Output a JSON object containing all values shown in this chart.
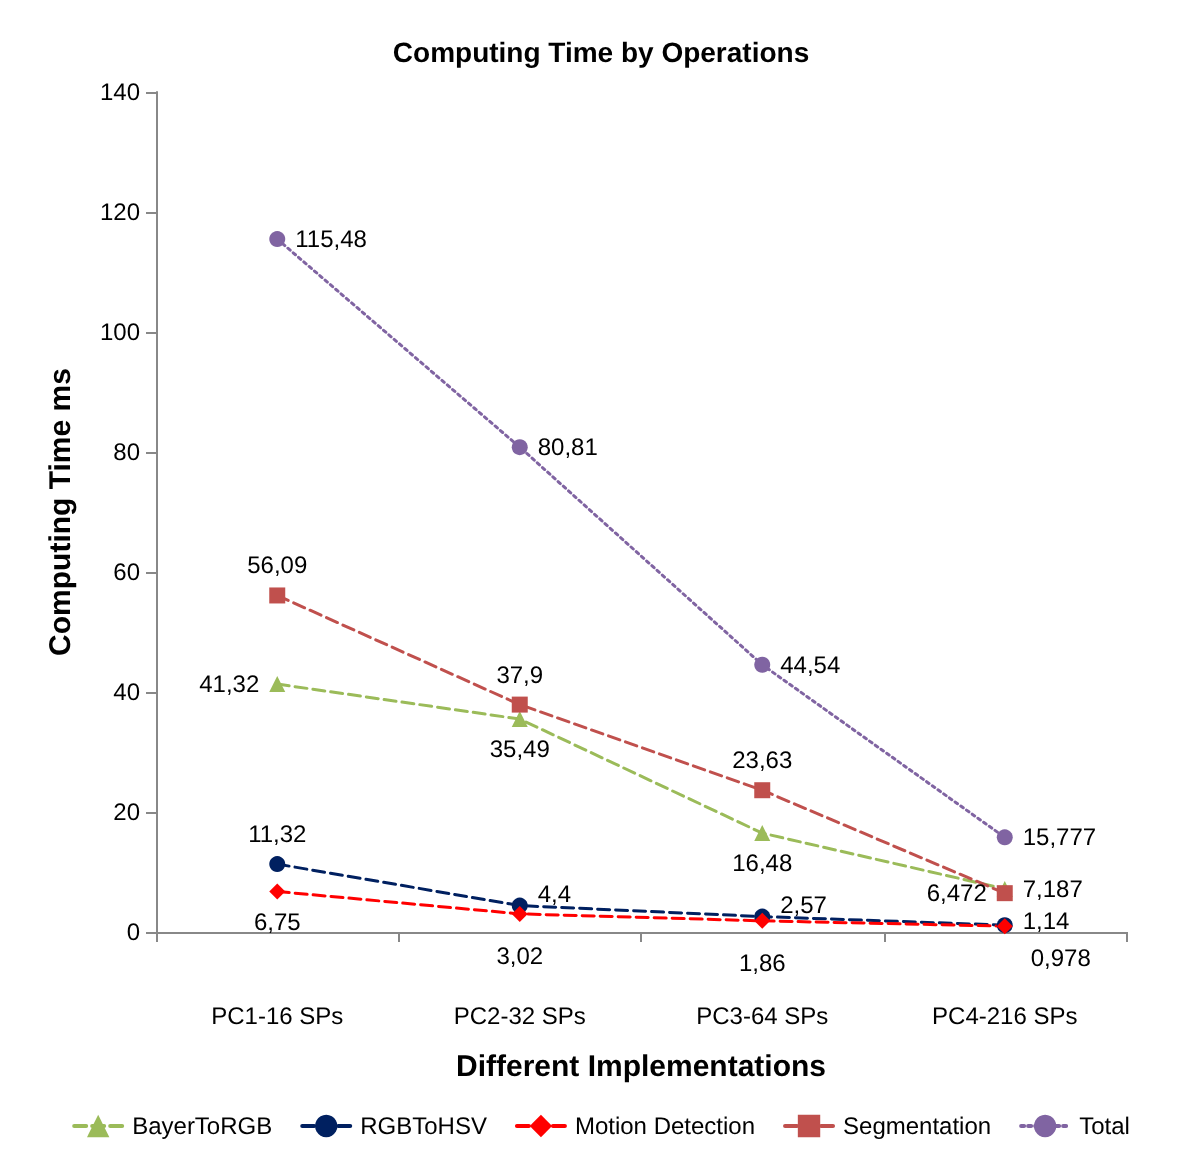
{
  "chart_data": {
    "type": "line",
    "title": "Computing Time by Operations",
    "xlabel": "Different Implementations",
    "ylabel": "Computing Time ms",
    "categories": [
      "PC1-16 SPs",
      "PC2-32 SPs",
      "PC3-64 SPs",
      "PC4-216 SPs"
    ],
    "ylim": [
      0,
      140
    ],
    "yticks": [
      0,
      20,
      40,
      60,
      80,
      100,
      120,
      140
    ],
    "grid": false,
    "legend": "bottom",
    "series": [
      {
        "name": "BayerToRGB",
        "color": "#9bbb59",
        "marker": "triangle",
        "line_style": "dashed",
        "values": [
          41.32,
          35.49,
          16.48,
          7.187
        ],
        "value_labels": [
          "41,32",
          "35,49",
          "16,48",
          "7,187"
        ]
      },
      {
        "name": "RGBToHSV",
        "color": "#002060",
        "marker": "circle",
        "line_style": "dashed",
        "values": [
          11.32,
          4.4,
          2.57,
          1.14
        ],
        "value_labels": [
          "11,32",
          "4,4",
          "2,57",
          "1,14"
        ]
      },
      {
        "name": "Motion Detection",
        "color": "#ff0000",
        "marker": "diamond",
        "line_style": "dashed",
        "values": [
          6.75,
          3.02,
          1.86,
          0.978
        ],
        "value_labels": [
          "6,75",
          "3,02",
          "1,86",
          "0,978"
        ]
      },
      {
        "name": "Segmentation",
        "color": "#c0504d",
        "marker": "square",
        "line_style": "dashed",
        "values": [
          56.09,
          37.9,
          23.63,
          6.472
        ],
        "value_labels": [
          "56,09",
          "37,9",
          "23,63",
          "6,472"
        ]
      },
      {
        "name": "Total",
        "color": "#8064a2",
        "marker": "circle",
        "line_style": "dotted",
        "values": [
          115.48,
          80.81,
          44.54,
          15.777
        ],
        "value_labels": [
          "115,48",
          "80,81",
          "44,54",
          "15,777"
        ]
      }
    ]
  }
}
